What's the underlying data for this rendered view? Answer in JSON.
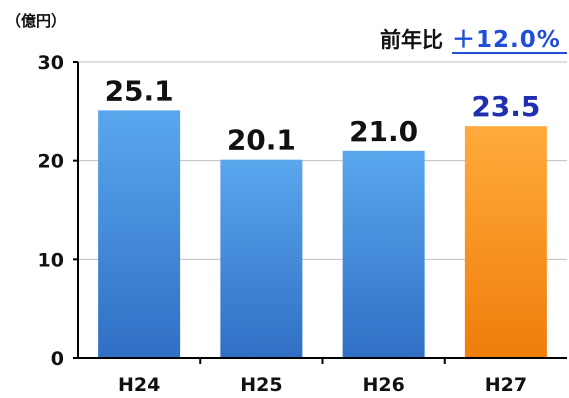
{
  "unit_label": "（億円）",
  "yoy": {
    "prefix": "前年比",
    "value": "＋12.0%"
  },
  "colors": {
    "bar_default_top": "#5aa7ee",
    "bar_default_bottom": "#2f6fc4",
    "bar_highlight_top": "#ffab3d",
    "bar_highlight_bottom": "#ef7d0a",
    "label_default": "#111111",
    "label_highlight": "#1f2fb0",
    "yoy_value": "#1f4fd8"
  },
  "chart_data": {
    "type": "bar",
    "categories": [
      "H24",
      "H25",
      "H26",
      "H27"
    ],
    "values": [
      25.1,
      20.1,
      21.0,
      23.5
    ],
    "value_labels": [
      "25.1",
      "20.1",
      "21.0",
      "23.5"
    ],
    "highlight_index": 3,
    "title": "",
    "xlabel": "",
    "ylabel": "（億円）",
    "ylim": [
      0,
      30
    ],
    "yticks": [
      0,
      10,
      20,
      30
    ],
    "ytick_labels": [
      "0",
      "10",
      "20",
      "30"
    ],
    "grid": true,
    "legend": "none"
  }
}
